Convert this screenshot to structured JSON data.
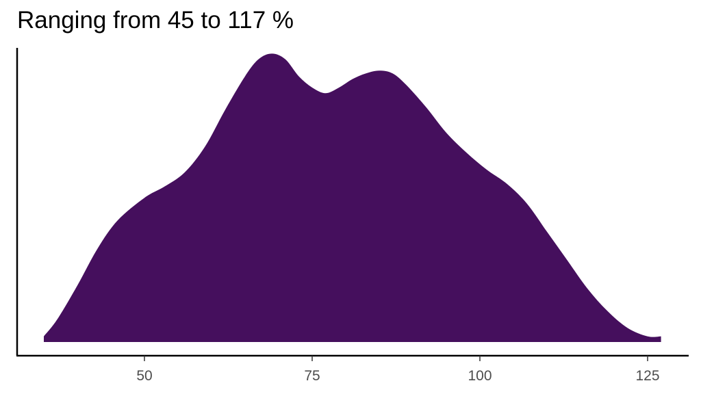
{
  "chart_data": {
    "type": "area",
    "title": "Ranging from 45 to 117 %",
    "xlabel": "",
    "ylabel": "",
    "xlim": [
      30,
      133
    ],
    "ylim": [
      0,
      1.05
    ],
    "x_ticks": [
      50,
      75,
      100,
      125
    ],
    "x_tick_labels": [
      "50",
      "75",
      "100",
      "125"
    ],
    "y_ticks_shown": false,
    "grid": false,
    "legend": "none",
    "fill_color": "#450f5d",
    "series": [
      {
        "x": [
          35,
          37,
          40,
          43,
          46,
          50,
          53,
          56,
          59,
          62,
          65,
          67,
          69,
          71,
          73,
          75,
          77,
          79,
          81,
          83,
          85,
          87,
          89,
          92,
          95,
          98,
          101,
          104,
          107,
          110,
          113,
          116,
          119,
          122,
          125,
          127
        ],
        "y": [
          0.02,
          0.08,
          0.2,
          0.33,
          0.43,
          0.51,
          0.55,
          0.6,
          0.69,
          0.82,
          0.94,
          1.0,
          1.02,
          1.0,
          0.94,
          0.9,
          0.88,
          0.9,
          0.93,
          0.95,
          0.96,
          0.95,
          0.91,
          0.83,
          0.74,
          0.67,
          0.61,
          0.56,
          0.49,
          0.39,
          0.29,
          0.19,
          0.11,
          0.05,
          0.02,
          0.02
        ]
      }
    ]
  }
}
